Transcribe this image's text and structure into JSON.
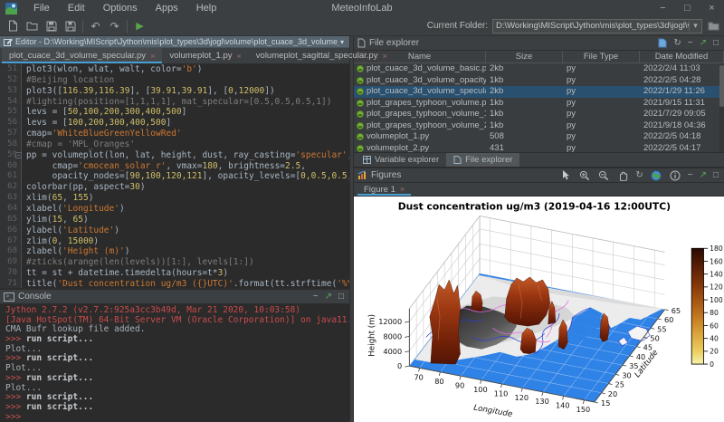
{
  "window": {
    "title": "MeteoInfoLab",
    "menus": [
      "File",
      "Edit",
      "Options",
      "Apps",
      "Help"
    ]
  },
  "icons": {
    "minimize": "−",
    "maximize": "□",
    "close": "×",
    "undo": "↶",
    "redo": "↷",
    "run": "▶",
    "dropdown": "▾",
    "refresh": "↻",
    "rotate": "↻",
    "float": "↗",
    "console_prompt_icon": ">_",
    "fold": "−"
  },
  "toolbar": {
    "current_folder_label": "Current Folder:",
    "current_folder_value": "D:\\Working\\MIScript\\Jython\\mis\\plot_types\\3d\\jogl\\volume"
  },
  "editor": {
    "title": "Editor - D:\\Working\\MIScript\\Jython\\mis\\plot_types\\3d\\jogl\\volume\\plot_cuace_3d_volume_specular.",
    "tabs": [
      {
        "label": "plot_cuace_3d_volume_specular.py",
        "active": true
      },
      {
        "label": "volumeplot_1.py",
        "active": false
      },
      {
        "label": "volumeplot_sagittal_specular.py",
        "active": false
      }
    ],
    "lines": [
      {
        "no": "51",
        "seg": [
          [
            "d",
            "plot3(wlon, wlat, walt, color="
          ],
          [
            "s",
            "'b'"
          ],
          [
            "d",
            ")"
          ]
        ]
      },
      {
        "no": "52",
        "seg": [
          [
            "c",
            "#Beijing location"
          ]
        ]
      },
      {
        "no": "53",
        "seg": [
          [
            "d",
            "plot3(["
          ],
          [
            "n",
            "116.39"
          ],
          [
            "d",
            ","
          ],
          [
            "n",
            "116.39"
          ],
          [
            "d",
            "], ["
          ],
          [
            "n",
            "39.91"
          ],
          [
            "d",
            ","
          ],
          [
            "n",
            "39.91"
          ],
          [
            "d",
            "], ["
          ],
          [
            "n",
            "0"
          ],
          [
            "d",
            ","
          ],
          [
            "n",
            "12000"
          ],
          [
            "d",
            "])"
          ]
        ]
      },
      {
        "no": "54",
        "seg": [
          [
            "c",
            "#lighting(position=[1,1,1,1], mat_specular=[0.5,0.5,0.5,1])"
          ]
        ]
      },
      {
        "no": "55",
        "seg": [
          [
            "d",
            "levs = ["
          ],
          [
            "n",
            "50,100,200,300,400,500"
          ],
          [
            "d",
            "]"
          ]
        ]
      },
      {
        "no": "56",
        "seg": [
          [
            "d",
            "levs = ["
          ],
          [
            "n",
            "100,200,300,400,500"
          ],
          [
            "d",
            "]"
          ]
        ]
      },
      {
        "no": "57",
        "seg": [
          [
            "d",
            "cmap="
          ],
          [
            "s",
            "'WhiteBlueGreenYellowRed'"
          ]
        ]
      },
      {
        "no": "58",
        "seg": [
          [
            "c",
            "#cmap = 'MPL_Oranges'"
          ]
        ]
      },
      {
        "no": "59",
        "fold": true,
        "seg": [
          [
            "d",
            "pp = volumeplot(lon, lat, height, dust, ray_casting="
          ],
          [
            "s",
            "'specular'"
          ],
          [
            "d",
            ","
          ]
        ]
      },
      {
        "no": "60",
        "seg": [
          [
            "d",
            "     cmap="
          ],
          [
            "s",
            "'cmocean_solar_r'"
          ],
          [
            "d",
            ", vmax="
          ],
          [
            "n",
            "180"
          ],
          [
            "d",
            ", brightness="
          ],
          [
            "n",
            "2.5"
          ],
          [
            "d",
            ","
          ]
        ]
      },
      {
        "no": "61",
        "seg": [
          [
            "d",
            "     opacity_nodes=["
          ],
          [
            "n",
            "90,100,120,121"
          ],
          [
            "d",
            "], opacity_levels=["
          ],
          [
            "n",
            "0,0.5,0.5,0"
          ],
          [
            "d",
            "])"
          ]
        ]
      },
      {
        "no": "62",
        "seg": [
          [
            "d",
            "colorbar(pp, aspect="
          ],
          [
            "n",
            "30"
          ],
          [
            "d",
            ")"
          ]
        ]
      },
      {
        "no": "63",
        "seg": [
          [
            "d",
            "xlim("
          ],
          [
            "n",
            "65"
          ],
          [
            "d",
            ", "
          ],
          [
            "n",
            "155"
          ],
          [
            "d",
            ")"
          ]
        ]
      },
      {
        "no": "64",
        "seg": [
          [
            "d",
            "xlabel("
          ],
          [
            "s",
            "'Longitude'"
          ],
          [
            "d",
            ")"
          ]
        ]
      },
      {
        "no": "65",
        "seg": [
          [
            "d",
            "ylim("
          ],
          [
            "n",
            "15"
          ],
          [
            "d",
            ", "
          ],
          [
            "n",
            "65"
          ],
          [
            "d",
            ")"
          ]
        ]
      },
      {
        "no": "66",
        "seg": [
          [
            "d",
            "ylabel("
          ],
          [
            "s",
            "'Latitude'"
          ],
          [
            "d",
            ")"
          ]
        ]
      },
      {
        "no": "67",
        "seg": [
          [
            "d",
            "zlim("
          ],
          [
            "n",
            "0"
          ],
          [
            "d",
            ", "
          ],
          [
            "n",
            "15000"
          ],
          [
            "d",
            ")"
          ]
        ]
      },
      {
        "no": "68",
        "seg": [
          [
            "d",
            "zlabel("
          ],
          [
            "s",
            "'Height (m)'"
          ],
          [
            "d",
            ")"
          ]
        ]
      },
      {
        "no": "69",
        "seg": [
          [
            "c",
            "#zticks(arange(len(levels))[1:], levels[1:])"
          ]
        ]
      },
      {
        "no": "70",
        "seg": [
          [
            "d",
            "tt = st + datetime.timedelta(hours=t*"
          ],
          [
            "n",
            "3"
          ],
          [
            "d",
            ")"
          ]
        ]
      },
      {
        "no": "71",
        "seg": [
          [
            "d",
            "title("
          ],
          [
            "s",
            "'Dust concentration ug/m3 ({}UTC)'"
          ],
          [
            "d",
            ".format(tt.strftime("
          ],
          [
            "s",
            "'%Y-%m-%d %H:"
          ]
        ]
      }
    ]
  },
  "console": {
    "title": "Console",
    "lines": [
      {
        "type": "err",
        "text": "Jython 2.7.2 (v2.7.2:925a3cc3b49d, Mar 21 2020, 10:03:58)"
      },
      {
        "type": "err",
        "text": "[Java HotSpot(TM) 64-Bit Server VM (Oracle Corporation)] on java11.0.5"
      },
      {
        "type": "out",
        "text": "CMA Bufr lookup file added."
      },
      {
        "type": "cmd",
        "prompt": ">>>",
        "text": " run script..."
      },
      {
        "type": "out",
        "text": "Plot..."
      },
      {
        "type": "cmd",
        "prompt": ">>>",
        "text": " run script..."
      },
      {
        "type": "out",
        "text": "Plot..."
      },
      {
        "type": "cmd",
        "prompt": ">>>",
        "text": " run script..."
      },
      {
        "type": "out",
        "text": "Plot..."
      },
      {
        "type": "cmd",
        "prompt": ">>>",
        "text": " run script..."
      },
      {
        "type": "cmd",
        "prompt": ">>>",
        "text": " run script..."
      },
      {
        "type": "cmd",
        "prompt": ">>>",
        "text": ""
      }
    ]
  },
  "file_explorer": {
    "title": "File explorer",
    "columns": [
      "Name",
      "Size",
      "File Type",
      "Date Modified"
    ],
    "rows": [
      {
        "name": "plot_cuace_3d_volume_basic.py",
        "size": "2kb",
        "type": "py",
        "date": "2022/2/4 11:03",
        "selected": false
      },
      {
        "name": "plot_cuace_3d_volume_opacity.py",
        "size": "1kb",
        "type": "py",
        "date": "2022/2/5 04:28",
        "selected": false
      },
      {
        "name": "plot_cuace_3d_volume_specular.py",
        "size": "2kb",
        "type": "py",
        "date": "2022/1/29 11:26",
        "selected": true
      },
      {
        "name": "plot_grapes_typhoon_volume.py",
        "size": "1kb",
        "type": "py",
        "date": "2021/9/15 11:31",
        "selected": false
      },
      {
        "name": "plot_grapes_typhoon_volume_1.py",
        "size": "1kb",
        "type": "py",
        "date": "2021/7/29 09:05",
        "selected": false
      },
      {
        "name": "plot_grapes_typhoon_volume_2.py",
        "size": "1kb",
        "type": "py",
        "date": "2021/9/18 04:36",
        "selected": false
      },
      {
        "name": "volumeplot_1.py",
        "size": "508",
        "type": "py",
        "date": "2022/2/5 04:18",
        "selected": false
      },
      {
        "name": "volumeplot_2.py",
        "size": "431",
        "type": "py",
        "date": "2022/2/5 04:17",
        "selected": false
      }
    ],
    "bottom_tabs": [
      {
        "label": "Variable explorer",
        "active": false
      },
      {
        "label": "File explorer",
        "active": true
      }
    ]
  },
  "figures": {
    "title": "Figures",
    "tab": "Figure 1",
    "chart_data": {
      "type": "3d-volume",
      "title": "Dust concentration ug/m3 (2019-04-16 12:00UTC)",
      "xlabel": "Longitude",
      "ylabel": "Latitude",
      "zlabel": "Height (m)",
      "xticks": [
        70,
        80,
        90,
        100,
        110,
        120,
        130,
        140,
        150
      ],
      "yticks": [
        15,
        20,
        25,
        30,
        35,
        40,
        45,
        50,
        55,
        60,
        65
      ],
      "zticks": [
        0,
        4000,
        8000,
        12000
      ],
      "xlim": [
        65,
        155
      ],
      "ylim": [
        15,
        65
      ],
      "zlim": [
        0,
        15000
      ],
      "colorbar_ticks": [
        0,
        20,
        40,
        60,
        80,
        100,
        120,
        140,
        160,
        180
      ],
      "colorbar_range": [
        0,
        180
      ],
      "colors": {
        "ocean": "#2f82e6",
        "dust_low": "#c25a28",
        "dust_high": "#541505",
        "coast": "#2a3bd8",
        "border": "#e06ae0",
        "cmap_bottom": "#f6f2a9",
        "cmap_top": "#2b0b03"
      }
    }
  }
}
